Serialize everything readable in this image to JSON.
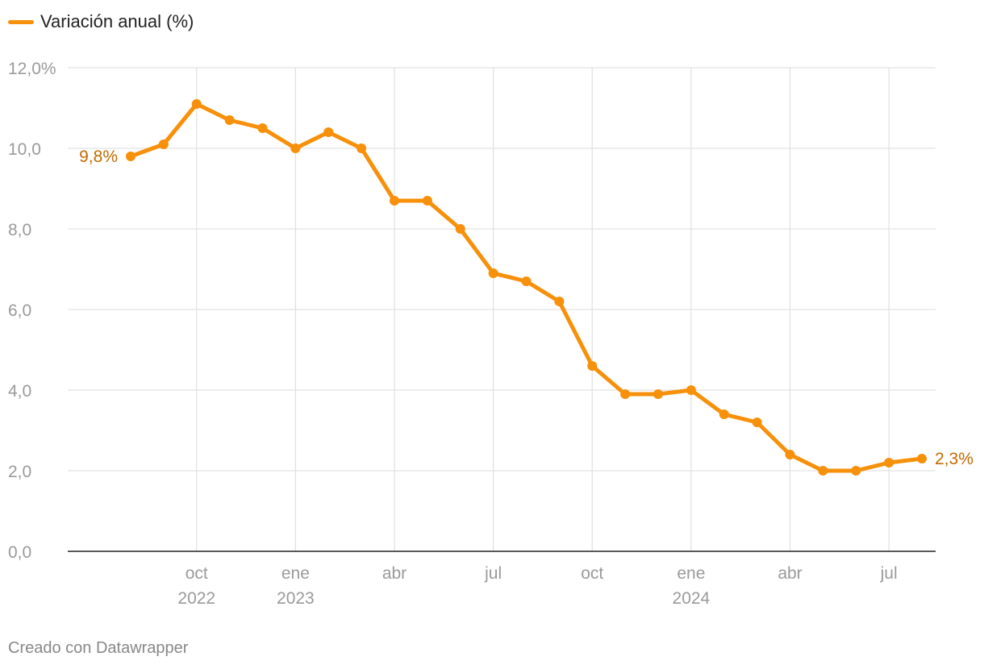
{
  "legend": {
    "label": "Variación anual (%)",
    "color": "#f7900a"
  },
  "footer": {
    "credit": "Creado con Datawrapper"
  },
  "colors": {
    "line": "#f7900a",
    "label": "#c26a00",
    "grid": "#e2e2e2",
    "tick": "#9a9a9a",
    "axis": "#222222"
  },
  "chart_data": {
    "type": "line",
    "series": [
      {
        "name": "Variación anual (%)",
        "x": [
          "2022-08",
          "2022-09",
          "2022-10",
          "2022-11",
          "2022-12",
          "2023-01",
          "2023-02",
          "2023-03",
          "2023-04",
          "2023-05",
          "2023-06",
          "2023-07",
          "2023-08",
          "2023-09",
          "2023-10",
          "2023-11",
          "2023-12",
          "2024-01",
          "2024-02",
          "2024-03",
          "2024-04",
          "2024-05",
          "2024-06",
          "2024-07",
          "2024-08"
        ],
        "values": [
          9.8,
          10.1,
          11.1,
          10.7,
          10.5,
          10.0,
          10.4,
          10.0,
          8.7,
          8.7,
          8.0,
          6.9,
          6.7,
          6.2,
          4.6,
          3.9,
          3.9,
          4.0,
          3.4,
          3.2,
          2.4,
          2.0,
          2.0,
          2.2,
          2.3
        ]
      }
    ],
    "ylim": [
      0,
      12
    ],
    "yticks": [
      {
        "value": 0,
        "label": "0,0"
      },
      {
        "value": 2,
        "label": "2,0"
      },
      {
        "value": 4,
        "label": "4,0"
      },
      {
        "value": 6,
        "label": "6,0"
      },
      {
        "value": 8,
        "label": "8,0"
      },
      {
        "value": 10,
        "label": "10,0"
      },
      {
        "value": 12,
        "label": "12,0%"
      }
    ],
    "xticks": [
      {
        "index": 2,
        "label": "oct",
        "sublabel": "2022"
      },
      {
        "index": 5,
        "label": "ene",
        "sublabel": "2023"
      },
      {
        "index": 8,
        "label": "abr",
        "sublabel": ""
      },
      {
        "index": 11,
        "label": "jul",
        "sublabel": ""
      },
      {
        "index": 14,
        "label": "oct",
        "sublabel": ""
      },
      {
        "index": 17,
        "label": "ene",
        "sublabel": "2024"
      },
      {
        "index": 20,
        "label": "abr",
        "sublabel": ""
      },
      {
        "index": 23,
        "label": "jul",
        "sublabel": ""
      }
    ],
    "annotations": [
      {
        "index": 0,
        "text": "9,8%",
        "side": "left"
      },
      {
        "index": 24,
        "text": "2,3%",
        "side": "right"
      }
    ],
    "grid": true,
    "legend_position": "top-left"
  }
}
